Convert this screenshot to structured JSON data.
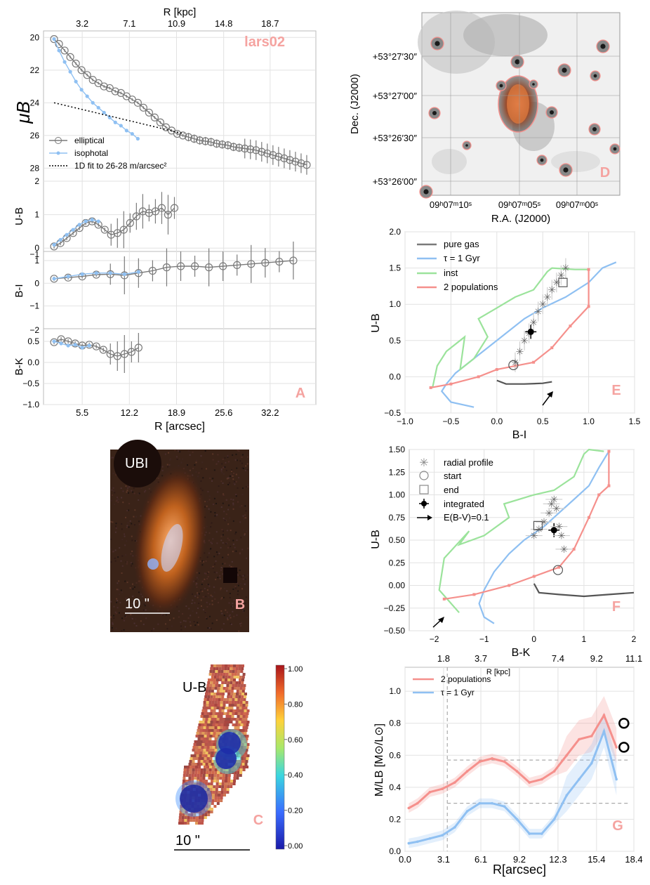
{
  "panels": {
    "A": {
      "tag": "lars02",
      "letter": "A",
      "top_axis_label": "R [kpc]",
      "top_ticks": [
        3.2,
        7.1,
        10.9,
        14.8,
        18.7
      ],
      "bottom_ticks": [
        5.5,
        12.2,
        18.9,
        25.6,
        32.2
      ],
      "xlabel": "R [arcsec]",
      "mu_label": "μB",
      "mu_ticks": [
        20,
        22,
        24,
        26,
        28
      ],
      "ub_ticks": [
        0,
        1,
        2
      ],
      "bi_ticks": [
        -1,
        0,
        1
      ],
      "bk_ticks": [
        -1.0,
        -0.5,
        0.0,
        0.5
      ],
      "sub_labels": [
        "U-B",
        "B-I",
        "B-K"
      ],
      "extra_ticks": [
        "−1",
        "−2"
      ],
      "legend": [
        "elliptical",
        "isophotal",
        "1D fit to 26-28 m/arcsec²"
      ]
    },
    "B": {
      "letter": "B",
      "label": "UBI",
      "scalebar": "10 \""
    },
    "C": {
      "letter": "C",
      "label": "U-B",
      "scalebar": "10 \"",
      "colorbar_ticks": [
        "1.00",
        "0.80",
        "0.60",
        "0.40",
        "0.20",
        "0.00"
      ]
    },
    "D": {
      "letter": "D",
      "ylabel": "Dec. (J2000)",
      "xlabel": "R.A. (J2000)",
      "yticks": [
        "+53°27′30″",
        "+53°27′00″",
        "+53°26′30″",
        "+53°26′00″"
      ],
      "xticks": [
        "09ʰ07ᵐ10ˢ",
        "09ʰ07ᵐ05ˢ",
        "09ʰ07ᵐ00ˢ"
      ]
    },
    "E": {
      "letter": "E",
      "xlabel": "B-I",
      "ylabel": "U-B",
      "xticks": [
        "−1.0",
        "−0.5",
        "0.0",
        "0.5",
        "1.0",
        "1.5"
      ],
      "yticks": [
        "−0.5",
        "0.0",
        "0.5",
        "1.0",
        "1.5",
        "2.0"
      ],
      "legend": [
        "pure gas",
        "τ = 1 Gyr",
        "inst",
        "2 populations"
      ]
    },
    "F": {
      "letter": "F",
      "xlabel": "B-K",
      "ylabel": "U-B",
      "xticks": [
        "−2",
        "−1",
        "0",
        "1",
        "2"
      ],
      "yticks": [
        "−0.50",
        "−0.25",
        "0.00",
        "0.25",
        "0.50",
        "0.75",
        "1.00",
        "1.25",
        "1.50"
      ],
      "legend": [
        "radial profile",
        "start",
        "end",
        "integrated",
        "E(B-V)=0.1"
      ]
    },
    "G": {
      "letter": "G",
      "ylabel": "M/LB [M⊙/L⊙]",
      "xlabel": "R[arcsec]",
      "top_axis_label": "R [kpc]",
      "top_ticks": [
        "1.8",
        "3.7",
        "7.4",
        "9.2",
        "11.1"
      ],
      "xticks": [
        "0.0",
        "3.1",
        "6.1",
        "9.2",
        "12.3",
        "15.4",
        "18.4"
      ],
      "yticks": [
        "0.0",
        "0.2",
        "0.4",
        "0.6",
        "0.8",
        "1.0"
      ],
      "legend": [
        "2 populations",
        "τ = 1 Gyr"
      ]
    }
  },
  "colors": {
    "grey": "#7a7a7a",
    "blue": "#8fc0f2",
    "green": "#9be39b",
    "red": "#f5908c",
    "pink_letter": "#f5a3a0",
    "dark": "#555555"
  },
  "chart_data": [
    {
      "type": "line",
      "panel": "A-mu",
      "series": [
        {
          "name": "elliptical",
          "x": [
            1.5,
            2.2,
            3,
            3.8,
            4.6,
            5.4,
            6.2,
            7,
            7.8,
            8.6,
            9.4,
            10.2,
            11,
            11.8,
            12.6,
            13.4,
            14.2,
            15,
            15.8,
            16.6,
            17.4,
            18.2,
            19,
            19.8,
            20.6,
            21.4,
            22.2,
            23,
            23.8,
            24.6,
            25.4,
            26.2,
            27,
            27.8,
            28.6,
            29.4,
            30.2,
            31,
            31.8,
            32.6,
            33.4,
            34.2,
            35,
            35.8,
            36.6,
            37.4
          ],
          "y": [
            20.1,
            20.4,
            20.8,
            21.2,
            21.6,
            22.0,
            22.3,
            22.6,
            22.8,
            23.0,
            23.1,
            23.3,
            23.4,
            23.6,
            23.8,
            24.0,
            24.3,
            24.6,
            24.9,
            25.2,
            25.5,
            25.7,
            25.9,
            26.0,
            26.1,
            26.2,
            26.3,
            26.35,
            26.4,
            26.5,
            26.55,
            26.6,
            26.7,
            26.75,
            26.8,
            26.85,
            26.9,
            27.0,
            27.1,
            27.2,
            27.3,
            27.4,
            27.5,
            27.6,
            27.7,
            27.8
          ]
        },
        {
          "name": "isophotal",
          "x": [
            1.5,
            2.2,
            3,
            3.8,
            4.6,
            5.4,
            6.2,
            7,
            7.8,
            8.6,
            9.4,
            10.2,
            11,
            11.8,
            12.6,
            13.4
          ],
          "y": [
            20.1,
            20.8,
            21.5,
            22.1,
            22.7,
            23.2,
            23.6,
            24.0,
            24.3,
            24.6,
            24.9,
            25.2,
            25.4,
            25.7,
            25.9,
            26.2
          ]
        },
        {
          "name": "1D fit to 26-28 m/arcsec²",
          "x": [
            1.5,
            20
          ],
          "y": [
            24.0,
            25.9
          ]
        }
      ],
      "xlim": [
        0,
        38.7
      ],
      "ylim": [
        28.8,
        19.6
      ]
    },
    {
      "type": "line",
      "panel": "A-UB",
      "series": [
        {
          "name": "elliptical",
          "x": [
            1.5,
            2.4,
            3.3,
            4.2,
            5.1,
            6,
            6.9,
            7.8,
            8.7,
            9.6,
            10.5,
            11.4,
            12.3,
            13.2,
            14.1,
            15,
            15.9,
            16.8,
            17.7,
            18.6
          ],
          "y": [
            0.05,
            0.15,
            0.3,
            0.45,
            0.6,
            0.75,
            0.8,
            0.7,
            0.55,
            0.4,
            0.45,
            0.55,
            0.75,
            0.95,
            1.1,
            1.05,
            1.1,
            1.2,
            1.0,
            1.2
          ]
        },
        {
          "name": "isophotal",
          "x": [
            1.5,
            2.4,
            3.3,
            4.2,
            5.1,
            6,
            6.9,
            7.8
          ],
          "y": [
            0.1,
            0.25,
            0.4,
            0.55,
            0.7,
            0.8,
            0.85,
            0.8
          ]
        }
      ],
      "xlim": [
        0,
        38.7
      ],
      "ylim": [
        -0.1,
        2.0
      ]
    },
    {
      "type": "line",
      "panel": "A-BI",
      "series": [
        {
          "name": "elliptical",
          "x": [
            1.5,
            3.5,
            5.5,
            7.5,
            9.5,
            11.5,
            13.5,
            15.5,
            17.5,
            19.5,
            21.5,
            23.5,
            25.5,
            27.5,
            29.5,
            31.5,
            33.5,
            35.5
          ],
          "y": [
            0.2,
            0.25,
            0.3,
            0.38,
            0.4,
            0.35,
            0.45,
            0.55,
            0.7,
            0.75,
            0.75,
            0.7,
            0.75,
            0.8,
            0.85,
            0.9,
            0.95,
            1.0
          ]
        },
        {
          "name": "isophotal",
          "x": [
            1.5,
            3.5,
            5.5,
            7.5,
            9.5,
            11.5,
            13.5
          ],
          "y": [
            0.2,
            0.3,
            0.4,
            0.45,
            0.45,
            0.4,
            0.5
          ]
        }
      ],
      "xlim": [
        0,
        38.7
      ],
      "ylim": [
        -2.0,
        1.4
      ]
    },
    {
      "type": "line",
      "panel": "A-BK",
      "series": [
        {
          "name": "elliptical",
          "x": [
            1.5,
            2.5,
            3.5,
            4.5,
            5.5,
            6.5,
            7.5,
            8.5,
            9.5,
            10.5,
            11.5,
            12.5,
            13.5
          ],
          "y": [
            0.48,
            0.55,
            0.5,
            0.45,
            0.4,
            0.42,
            0.38,
            0.3,
            0.2,
            0.15,
            0.2,
            0.25,
            0.35
          ]
        },
        {
          "name": "isophotal",
          "x": [
            1.5,
            2.5,
            3.5,
            4.5,
            5.5,
            6.5
          ],
          "y": [
            0.5,
            0.45,
            0.4,
            0.42,
            0.35,
            0.4
          ]
        }
      ],
      "xlim": [
        0,
        38.7
      ],
      "ylim": [
        -1.0,
        0.8
      ]
    },
    {
      "type": "line",
      "panel": "E",
      "series": [
        {
          "name": "pure gas",
          "x": [
            0.0,
            0.1,
            0.3,
            0.5,
            0.6
          ],
          "y": [
            -0.05,
            -0.1,
            -0.1,
            -0.09,
            -0.07
          ]
        },
        {
          "name": "τ = 1 Gyr",
          "x": [
            -0.25,
            -0.5,
            -0.6,
            -0.55,
            -0.45,
            -0.2,
            0.0,
            0.15,
            0.3,
            0.5,
            0.75,
            1.0,
            1.15,
            1.3
          ],
          "y": [
            -0.42,
            -0.35,
            -0.2,
            -0.1,
            0.05,
            0.3,
            0.5,
            0.65,
            0.8,
            0.95,
            1.1,
            1.3,
            1.5,
            1.58
          ]
        },
        {
          "name": "inst",
          "x": [
            -0.7,
            -0.65,
            -0.55,
            -0.35,
            -0.4,
            -0.25,
            -0.1,
            -0.2,
            0.0,
            0.2,
            0.4,
            0.55,
            0.6,
            0.85,
            1.0
          ],
          "y": [
            -0.15,
            0.15,
            0.35,
            0.55,
            0.1,
            0.25,
            0.55,
            0.8,
            0.95,
            1.1,
            1.2,
            1.45,
            1.5,
            1.48,
            1.48
          ]
        },
        {
          "name": "2 populations",
          "x": [
            -0.72,
            -0.5,
            -0.2,
            0.0,
            0.2,
            0.4,
            0.6,
            0.8,
            1.0,
            1.0
          ],
          "y": [
            -0.15,
            -0.1,
            0.0,
            0.1,
            0.15,
            0.2,
            0.4,
            0.7,
            0.97,
            1.48
          ]
        },
        {
          "name": "radial profile",
          "x": [
            0.2,
            0.25,
            0.3,
            0.35,
            0.4,
            0.45,
            0.5,
            0.55,
            0.6,
            0.65,
            0.7,
            0.75
          ],
          "y": [
            0.2,
            0.35,
            0.5,
            0.6,
            0.75,
            0.9,
            1.0,
            1.1,
            1.2,
            1.3,
            1.4,
            1.5
          ]
        }
      ],
      "xlim": [
        -1.0,
        1.5
      ],
      "ylim": [
        -0.5,
        2.0
      ]
    },
    {
      "type": "line",
      "panel": "F",
      "series": [
        {
          "name": "pure gas",
          "x": [
            0.0,
            0.1,
            0.5,
            1.0,
            1.5,
            2.0
          ],
          "y": [
            0.02,
            -0.08,
            -0.1,
            -0.12,
            -0.1,
            -0.08
          ]
        },
        {
          "name": "τ = 1 Gyr",
          "x": [
            -0.8,
            -1.0,
            -1.1,
            -1.0,
            -0.8,
            -0.5,
            -0.2,
            0.2,
            0.5,
            0.8,
            1.1,
            1.3,
            1.5
          ],
          "y": [
            -0.42,
            -0.35,
            -0.2,
            -0.05,
            0.15,
            0.35,
            0.5,
            0.65,
            0.8,
            0.95,
            1.1,
            1.3,
            1.48
          ]
        },
        {
          "name": "inst",
          "x": [
            -1.5,
            -1.9,
            -1.8,
            -1.3,
            -1.5,
            -1.0,
            -0.5,
            -0.6,
            0.0,
            0.4,
            0.8,
            1.0,
            1.1,
            1.4
          ],
          "y": [
            -0.3,
            -0.05,
            0.3,
            0.6,
            0.45,
            0.55,
            0.75,
            0.9,
            1.0,
            1.05,
            1.2,
            1.45,
            1.5,
            1.48
          ]
        },
        {
          "name": "2 populations",
          "x": [
            -1.8,
            -1.2,
            -0.5,
            0.0,
            0.5,
            0.8,
            1.1,
            1.3,
            1.5,
            1.5
          ],
          "y": [
            -0.15,
            -0.1,
            0.0,
            0.1,
            0.2,
            0.4,
            0.75,
            1.0,
            1.1,
            1.48
          ]
        },
        {
          "name": "integrated",
          "x": [
            0.4
          ],
          "y": [
            0.61
          ]
        }
      ],
      "xlim": [
        -2.5,
        2.0
      ],
      "ylim": [
        -0.5,
        1.5
      ]
    },
    {
      "type": "line",
      "panel": "G",
      "series": [
        {
          "name": "2 populations",
          "x": [
            0.3,
            1,
            2,
            3,
            4,
            5,
            6,
            7,
            8,
            9,
            10,
            11,
            12,
            13,
            14,
            15,
            16,
            17
          ],
          "y": [
            0.27,
            0.3,
            0.37,
            0.39,
            0.43,
            0.5,
            0.56,
            0.58,
            0.56,
            0.5,
            0.43,
            0.45,
            0.5,
            0.6,
            0.7,
            0.72,
            0.85,
            0.65
          ]
        },
        {
          "name": "τ = 1 Gyr",
          "x": [
            0.3,
            1,
            2,
            3,
            4,
            5,
            6,
            7,
            8,
            9,
            10,
            11,
            12,
            13,
            14,
            15,
            16,
            17
          ],
          "y": [
            0.05,
            0.06,
            0.08,
            0.1,
            0.15,
            0.25,
            0.3,
            0.3,
            0.28,
            0.2,
            0.11,
            0.11,
            0.2,
            0.35,
            0.45,
            0.55,
            0.75,
            0.45
          ]
        }
      ],
      "xlim": [
        0.0,
        18.4
      ],
      "ylim": [
        0.0,
        1.15
      ]
    }
  ]
}
